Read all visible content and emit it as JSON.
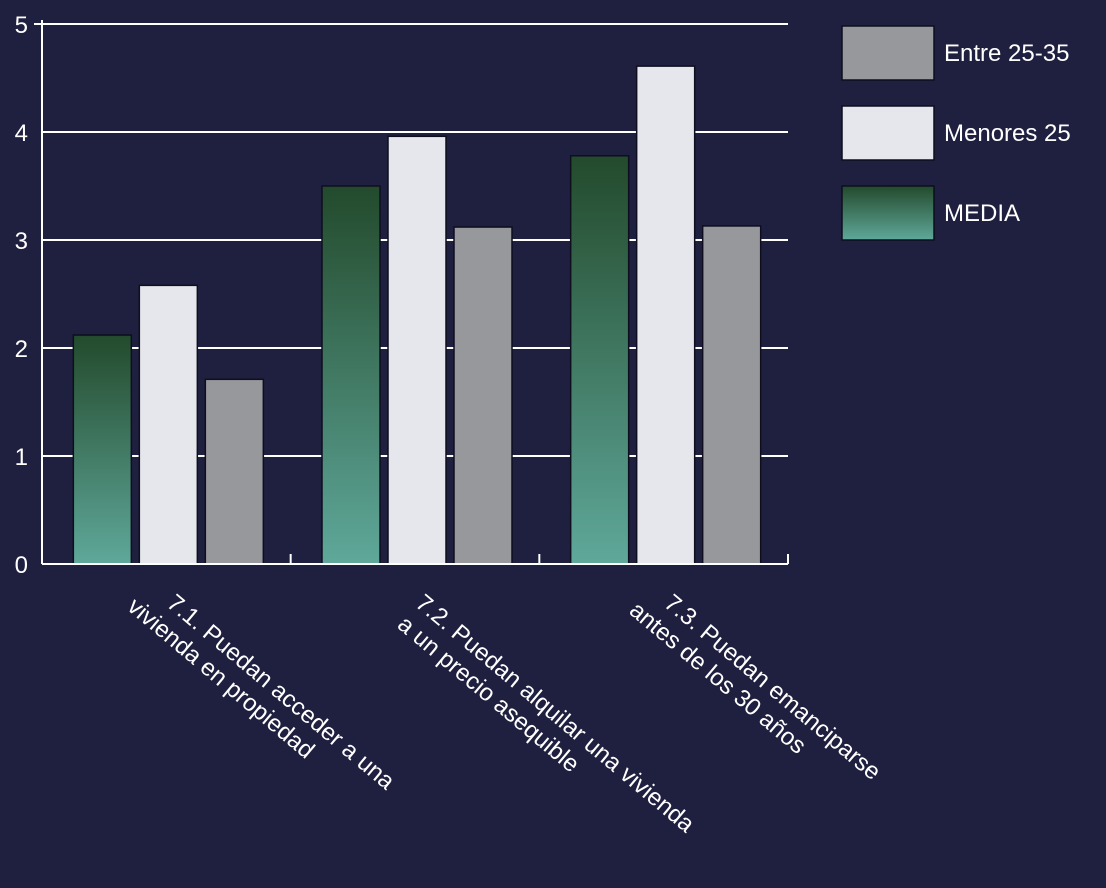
{
  "chart_data": {
    "type": "bar",
    "title": "",
    "xlabel": "",
    "ylabel": "",
    "ylim": [
      0,
      5
    ],
    "yticks": [
      0,
      1,
      2,
      3,
      4,
      5
    ],
    "grid": true,
    "legend_position": "top-right",
    "categories": [
      [
        "7.1. Puedan acceder a una",
        "vivienda en propiedad"
      ],
      [
        "7.2. Puedan alquilar una vivienda",
        "a un precio asequible"
      ],
      [
        "7.3. Puedan emanciparse",
        "antes de los 30 años"
      ]
    ],
    "series": [
      {
        "name": "MEDIA",
        "values": [
          2.12,
          3.5,
          3.78
        ],
        "color_top": "#234a2c",
        "color_bottom": "#5fa89a"
      },
      {
        "name": "Menores 25",
        "values": [
          2.58,
          3.96,
          4.61
        ],
        "color": "#e6e7ec"
      },
      {
        "name": "Entre 25-35",
        "values": [
          1.71,
          3.12,
          3.13
        ],
        "color": "#97989c"
      }
    ],
    "legend_order": [
      "Entre 25-35",
      "Menores 25",
      "MEDIA"
    ]
  },
  "colors": {
    "background": "#1f1f3f",
    "gridline": "#ffffff",
    "text": "#ffffff"
  }
}
